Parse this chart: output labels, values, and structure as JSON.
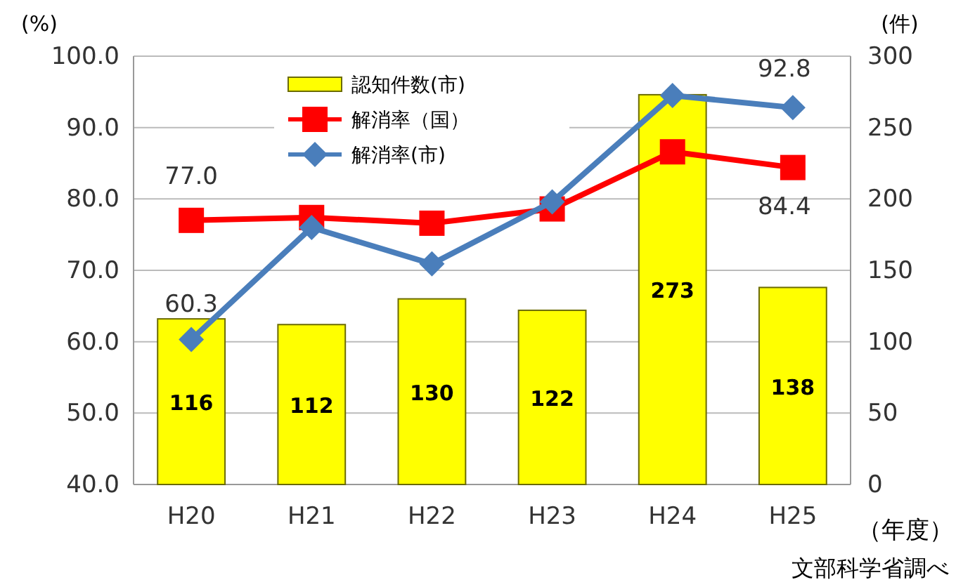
{
  "chart_data": {
    "type": "bar",
    "xlabel": "（年度）",
    "ylabel": "(%)",
    "y2label": "(件)",
    "annotations": [
      "文部科学省調べ"
    ],
    "categories": [
      "H20",
      "H21",
      "H22",
      "H23",
      "H24",
      "H25"
    ],
    "series": [
      {
        "name": "認知件数(市)",
        "axis": "y2",
        "color": "#ffff00",
        "values": [
          116,
          112,
          130,
          122,
          273,
          138
        ],
        "value_labels": [
          "116",
          "112",
          "130",
          "122",
          "273",
          "138"
        ]
      },
      {
        "name": "解消率（国）",
        "type": "line",
        "marker": "square",
        "color": "#ff0000",
        "values": [
          77.0,
          77.4,
          76.6,
          78.6,
          86.6,
          84.4
        ],
        "value_labels": [
          "77.0",
          null,
          null,
          null,
          null,
          "84.4"
        ]
      },
      {
        "name": "解消率(市)",
        "type": "line",
        "marker": "diamond",
        "color": "#4a7ebb",
        "values": [
          60.3,
          76.0,
          70.9,
          79.6,
          94.5,
          92.8
        ],
        "value_labels": [
          "60.3",
          null,
          null,
          null,
          null,
          "92.8"
        ]
      }
    ],
    "ylim": [
      40,
      100
    ],
    "yticks": [
      {
        "value": 40,
        "label": "40.0"
      },
      {
        "value": 50,
        "label": "50.0"
      },
      {
        "value": 60,
        "label": "60.0"
      },
      {
        "value": 70,
        "label": "70.0"
      },
      {
        "value": 80,
        "label": "80.0"
      },
      {
        "value": 90,
        "label": "90.0"
      },
      {
        "value": 100,
        "label": "100.0"
      }
    ],
    "y2lim": [
      0,
      300
    ],
    "y2ticks": [
      0,
      50,
      100,
      150,
      200,
      250,
      300
    ],
    "grid": "y",
    "legend": "top left"
  }
}
